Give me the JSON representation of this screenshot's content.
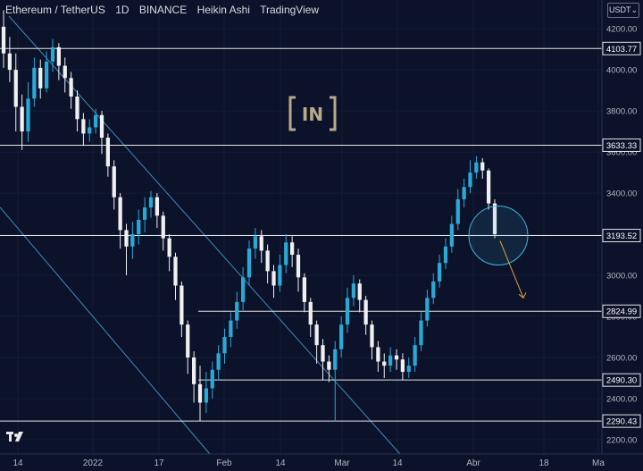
{
  "header": {
    "symbol": "Ethereum / TetherUS",
    "interval": "1D",
    "exchange": "BINANCE",
    "chart_style": "Heikin Ashi",
    "platform": "TradingView"
  },
  "currency_selector": "USDT",
  "watermark_text": "IN",
  "colors": {
    "background": "#0b1229",
    "up": "#2aa9d6",
    "down": "#f0f0f0",
    "line": "#e6e6e6",
    "channel": "#3f8ab8",
    "arrow": "#e3a23b",
    "circle": "#3fb6e0"
  },
  "chart_data": {
    "type": "candlestick",
    "x_ticks": [
      "14",
      "2022",
      "17",
      "Feb",
      "14",
      "Mar",
      "14",
      "Abr",
      "18",
      "Ma"
    ],
    "y_ticks": [
      2200,
      2400,
      2600,
      2800,
      3000,
      3200,
      3400,
      3600,
      3800,
      4000,
      4200
    ],
    "ylim": [
      2130,
      4340
    ],
    "horizontal_levels": [
      "4103.77",
      "3633.33",
      "3193.52",
      "2824.99",
      "2490.30",
      "2290.43"
    ],
    "candles": [
      [
        4210,
        4080,
        4290,
        4010
      ],
      [
        4080,
        4000,
        4160,
        3940
      ],
      [
        4000,
        3820,
        4080,
        3700
      ],
      [
        3820,
        3700,
        3880,
        3610
      ],
      [
        3700,
        3860,
        3940,
        3650
      ],
      [
        3860,
        4010,
        4060,
        3820
      ],
      [
        4010,
        3910,
        4050,
        3860
      ],
      [
        3910,
        4040,
        4090,
        3890
      ],
      [
        4040,
        4110,
        4150,
        3990
      ],
      [
        4110,
        4020,
        4130,
        3950
      ],
      [
        4020,
        3960,
        4060,
        3890
      ],
      [
        3960,
        3870,
        3990,
        3810
      ],
      [
        3870,
        3760,
        3900,
        3700
      ],
      [
        3760,
        3690,
        3790,
        3630
      ],
      [
        3690,
        3720,
        3760,
        3650
      ],
      [
        3720,
        3780,
        3810,
        3690
      ],
      [
        3780,
        3670,
        3800,
        3590
      ],
      [
        3670,
        3530,
        3690,
        3480
      ],
      [
        3530,
        3380,
        3560,
        3320
      ],
      [
        3380,
        3220,
        3400,
        3130
      ],
      [
        3220,
        3140,
        3250,
        3000
      ],
      [
        3140,
        3200,
        3260,
        3080
      ],
      [
        3200,
        3270,
        3320,
        3150
      ],
      [
        3270,
        3330,
        3380,
        3210
      ],
      [
        3330,
        3380,
        3410,
        3280
      ],
      [
        3380,
        3290,
        3400,
        3230
      ],
      [
        3290,
        3180,
        3310,
        3120
      ],
      [
        3180,
        3090,
        3200,
        3020
      ],
      [
        3090,
        2950,
        3110,
        2880
      ],
      [
        2950,
        2760,
        2970,
        2700
      ],
      [
        2760,
        2600,
        2780,
        2520
      ],
      [
        2600,
        2470,
        2630,
        2380
      ],
      [
        2470,
        2380,
        2560,
        2290
      ],
      [
        2380,
        2450,
        2530,
        2330
      ],
      [
        2450,
        2540,
        2580,
        2400
      ],
      [
        2540,
        2620,
        2660,
        2490
      ],
      [
        2620,
        2700,
        2740,
        2570
      ],
      [
        2700,
        2780,
        2820,
        2650
      ],
      [
        2780,
        2870,
        2920,
        2740
      ],
      [
        2870,
        2990,
        3040,
        2830
      ],
      [
        2990,
        3130,
        3170,
        2950
      ],
      [
        3130,
        3190,
        3230,
        3080
      ],
      [
        3190,
        3120,
        3220,
        3060
      ],
      [
        3120,
        3020,
        3150,
        2960
      ],
      [
        3020,
        2950,
        3050,
        2890
      ],
      [
        2950,
        3050,
        3100,
        2920
      ],
      [
        3050,
        3160,
        3200,
        3010
      ],
      [
        3160,
        3100,
        3190,
        3040
      ],
      [
        3100,
        2990,
        3130,
        2920
      ],
      [
        2990,
        2870,
        3010,
        2820
      ],
      [
        2870,
        2760,
        2890,
        2700
      ],
      [
        2760,
        2660,
        2780,
        2570
      ],
      [
        2660,
        2580,
        2690,
        2490
      ],
      [
        2580,
        2540,
        2610,
        2480
      ],
      [
        2540,
        2640,
        2680,
        2290
      ],
      [
        2640,
        2760,
        2800,
        2600
      ],
      [
        2760,
        2890,
        2940,
        2720
      ],
      [
        2890,
        2960,
        3000,
        2850
      ],
      [
        2960,
        2880,
        2980,
        2820
      ],
      [
        2880,
        2760,
        2900,
        2710
      ],
      [
        2760,
        2650,
        2780,
        2590
      ],
      [
        2650,
        2580,
        2680,
        2530
      ],
      [
        2580,
        2560,
        2620,
        2500
      ],
      [
        2560,
        2610,
        2650,
        2530
      ],
      [
        2610,
        2590,
        2640,
        2540
      ],
      [
        2590,
        2530,
        2620,
        2490
      ],
      [
        2530,
        2560,
        2600,
        2500
      ],
      [
        2560,
        2660,
        2700,
        2530
      ],
      [
        2660,
        2780,
        2820,
        2630
      ],
      [
        2780,
        2890,
        2930,
        2750
      ],
      [
        2890,
        2970,
        3010,
        2860
      ],
      [
        2970,
        3060,
        3100,
        2940
      ],
      [
        3060,
        3140,
        3180,
        3030
      ],
      [
        3140,
        3250,
        3290,
        3110
      ],
      [
        3250,
        3370,
        3420,
        3220
      ],
      [
        3370,
        3430,
        3470,
        3330
      ],
      [
        3430,
        3500,
        3560,
        3400
      ],
      [
        3500,
        3550,
        3580,
        3470
      ],
      [
        3550,
        3510,
        3570,
        3470
      ],
      [
        3510,
        3350,
        3520,
        3320
      ],
      [
        3350,
        3200,
        3370,
        3180
      ]
    ]
  }
}
